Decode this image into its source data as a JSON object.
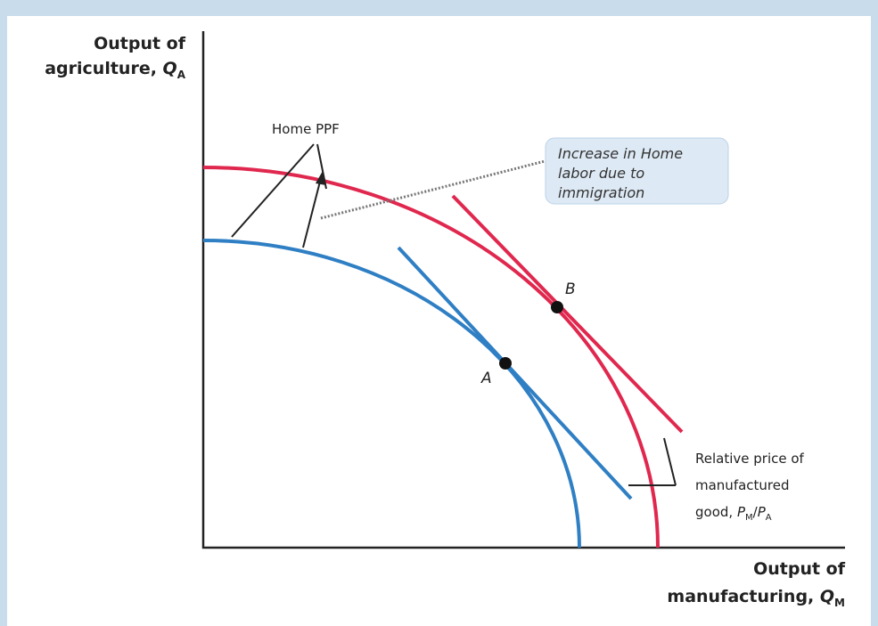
{
  "y_axis": {
    "line1": "Output of",
    "line2": "agriculture, ",
    "symbol": "Q",
    "subscript": "A"
  },
  "x_axis": {
    "line1": "Output of",
    "line2": "manufacturing, ",
    "symbol": "Q",
    "subscript": "M"
  },
  "ppf_label": "Home PPF",
  "callout": {
    "lines": [
      "Increase in Home",
      "labor due to",
      "immigration"
    ]
  },
  "points": {
    "a": "A",
    "b": "B"
  },
  "price_label": {
    "line1": "Relative price of",
    "line2": "manufactured",
    "line3": "good, ",
    "num": "P",
    "num_sub": "M",
    "slash": "/",
    "den": "P",
    "den_sub": "A"
  }
}
